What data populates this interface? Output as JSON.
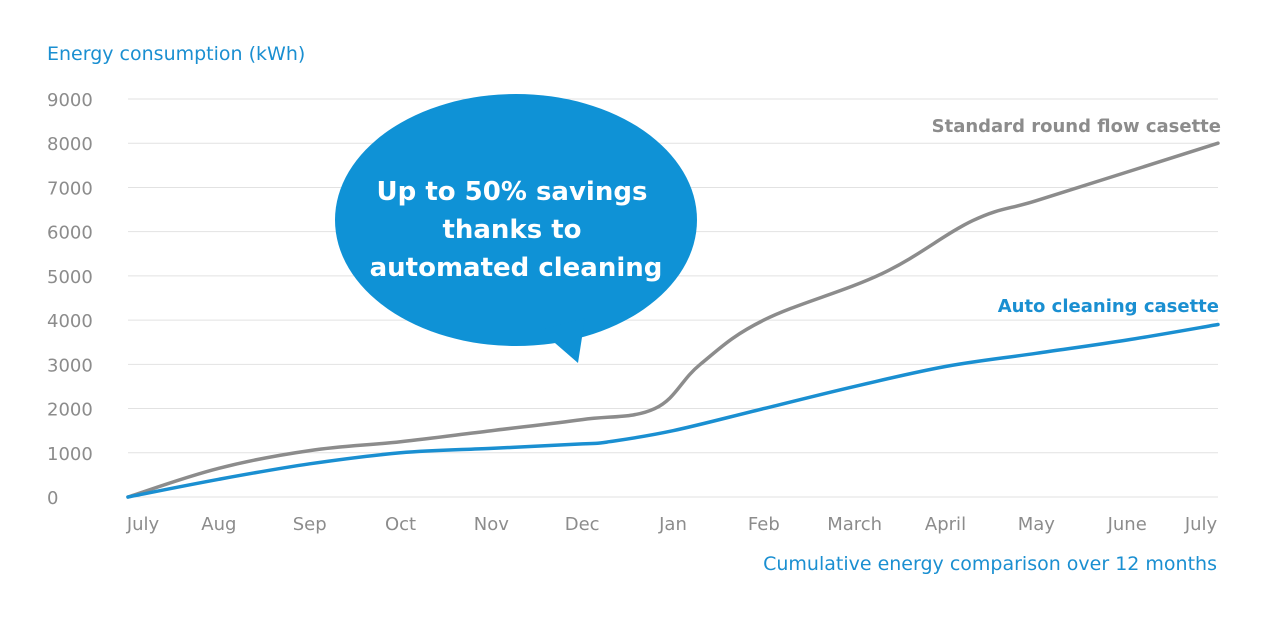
{
  "chart_data": {
    "type": "line",
    "ylabel": "Energy consumption (kWh)",
    "xlabel": "Cumulative energy comparison over 12 months",
    "categories": [
      "July",
      "Aug",
      "Sep",
      "Oct",
      "Nov",
      "Dec",
      "Jan",
      "Feb",
      "March",
      "April",
      "May",
      "June",
      "July"
    ],
    "yticks": [
      0,
      1000,
      2000,
      3000,
      4000,
      5000,
      6000,
      7000,
      8000,
      9000
    ],
    "ylim": [
      0,
      9000
    ],
    "grid": true,
    "callout": [
      "Up to 50% savings",
      "thanks to",
      "automated cleaning"
    ],
    "series": [
      {
        "name": "Standard round flow casette",
        "color": "#8c8c8c",
        "points": [
          [
            0,
            0
          ],
          [
            1,
            650
          ],
          [
            2,
            1050
          ],
          [
            3,
            1250
          ],
          [
            4,
            1500
          ],
          [
            5,
            1750
          ],
          [
            5.8,
            2000
          ],
          [
            6.3,
            3000
          ],
          [
            7,
            4000
          ],
          [
            8.3,
            5050
          ],
          [
            9.3,
            6250
          ],
          [
            10,
            6700
          ],
          [
            11,
            7350
          ],
          [
            12,
            8000
          ]
        ]
      },
      {
        "name": "Auto cleaning casette",
        "color": "#1a8fd1",
        "points": [
          [
            0,
            0
          ],
          [
            1,
            400
          ],
          [
            2,
            750
          ],
          [
            3,
            1000
          ],
          [
            4,
            1100
          ],
          [
            5,
            1200
          ],
          [
            5.3,
            1250
          ],
          [
            6,
            1500
          ],
          [
            7,
            2000
          ],
          [
            8,
            2500
          ],
          [
            9,
            2950
          ],
          [
            10,
            3250
          ],
          [
            11,
            3550
          ],
          [
            12,
            3900
          ]
        ]
      }
    ]
  },
  "colors": {
    "accent": "#1a8fd1",
    "axis_text": "#8c8c8c",
    "grid": "#e2e2e2",
    "callout_fill": "#0f92d6"
  }
}
